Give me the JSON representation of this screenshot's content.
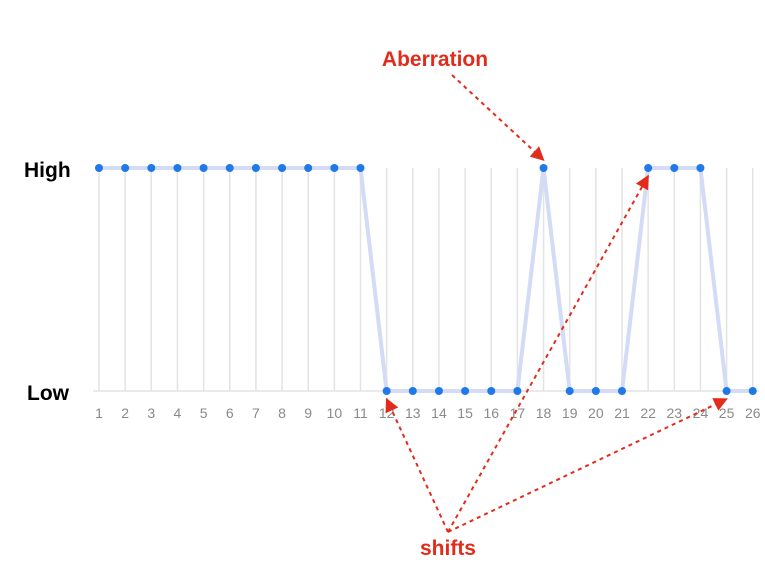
{
  "chart_data": {
    "type": "line",
    "x": [
      1,
      2,
      3,
      4,
      5,
      6,
      7,
      8,
      9,
      10,
      11,
      12,
      13,
      14,
      15,
      16,
      17,
      18,
      19,
      20,
      21,
      22,
      23,
      24,
      25,
      26
    ],
    "tick_labels": [
      "1",
      "2",
      "3",
      "4",
      "5",
      "6",
      "7",
      "8",
      "9",
      "10",
      "11",
      "12",
      "13",
      "14",
      "15",
      "16",
      "17",
      "18",
      "19",
      "20",
      "21",
      "22",
      "23",
      "24",
      "25",
      "26"
    ],
    "levels": [
      "Low",
      "High"
    ],
    "values": [
      "High",
      "High",
      "High",
      "High",
      "High",
      "High",
      "High",
      "High",
      "High",
      "High",
      "High",
      "Low",
      "Low",
      "Low",
      "Low",
      "Low",
      "Low",
      "High",
      "Low",
      "Low",
      "Low",
      "High",
      "High",
      "High",
      "Low",
      "Low"
    ],
    "y_labels": {
      "high": "High",
      "low": "Low"
    },
    "grid": "vertical",
    "colors": {
      "point": "#1f7ae8",
      "line": "#d3dbf5",
      "annotation": "#e32b1b"
    },
    "annotations": [
      {
        "text": "Aberration",
        "targets": [
          18
        ]
      },
      {
        "text": "shifts",
        "targets": [
          12,
          22,
          25
        ]
      }
    ]
  }
}
